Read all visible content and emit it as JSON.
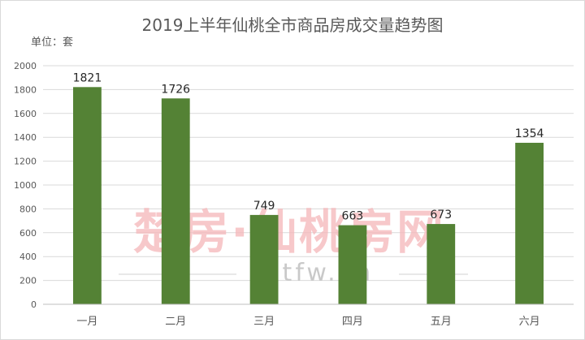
{
  "chart_data": {
    "type": "bar",
    "title": "2019上半年仙桃全市商品房成交量趋势图",
    "unit_label": "单位：套",
    "categories": [
      "一月",
      "二月",
      "三月",
      "四月",
      "五月",
      "六月"
    ],
    "values": [
      1821,
      1726,
      749,
      663,
      673,
      1354
    ],
    "ylim": [
      0,
      2000
    ],
    "ytick_step": 200,
    "grid": true,
    "bar_color": "#548235",
    "grid_color": "#d9d9d9",
    "data_labels": true
  },
  "watermark": {
    "main": "楚房·仙桃房网",
    "url": "xtfw.cn",
    "main_color": "#f4b6b8",
    "url_color": "#c9c9c9"
  }
}
